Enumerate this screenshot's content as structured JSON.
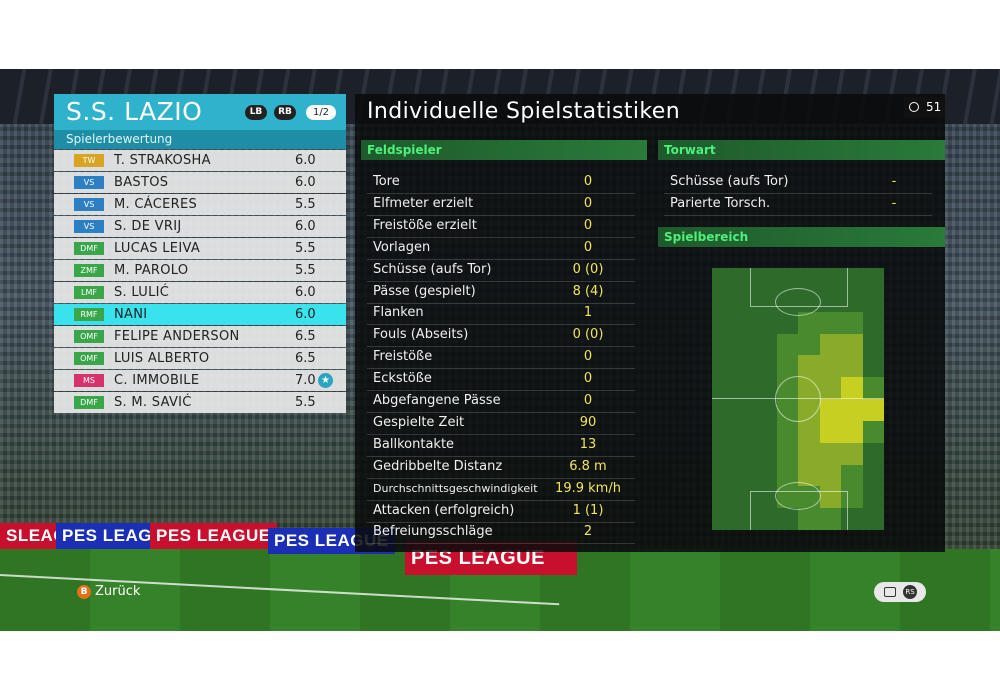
{
  "team": {
    "name": "S.S. LAZIO",
    "lb_label": "LB",
    "rb_label": "RB",
    "page": "1/2",
    "subheader": "Spielerbewertung",
    "accent": "#2fb3cc"
  },
  "players": [
    {
      "pos": "TW",
      "name": "T. STRAKOSHA",
      "rating": "6.0",
      "pos_color": "#d9a422"
    },
    {
      "pos": "VS",
      "name": "BASTOS",
      "rating": "6.0",
      "pos_color": "#2d7fc4"
    },
    {
      "pos": "VS",
      "name": "M. CÁCERES",
      "rating": "5.5",
      "pos_color": "#2d7fc4"
    },
    {
      "pos": "VS",
      "name": "S. DE VRIJ",
      "rating": "6.0",
      "pos_color": "#2d7fc4"
    },
    {
      "pos": "DMF",
      "name": "LUCAS LEIVA",
      "rating": "5.5",
      "pos_color": "#3aa64a"
    },
    {
      "pos": "ZMF",
      "name": "M. PAROLO",
      "rating": "5.5",
      "pos_color": "#3aa64a"
    },
    {
      "pos": "LMF",
      "name": "S. LULIĆ",
      "rating": "6.0",
      "pos_color": "#3aa64a"
    },
    {
      "pos": "RMF",
      "name": "NANI",
      "rating": "6.0",
      "pos_color": "#3aa64a"
    },
    {
      "pos": "OMF",
      "name": "FELIPE ANDERSON",
      "rating": "6.5",
      "pos_color": "#3aa64a"
    },
    {
      "pos": "OMF",
      "name": "LUIS ALBERTO",
      "rating": "6.5",
      "pos_color": "#3aa64a"
    },
    {
      "pos": "MS",
      "name": "C. IMMOBILE",
      "rating": "7.0",
      "pos_color": "#d6336c",
      "star": "★"
    },
    {
      "pos": "DMF",
      "name": "S. M. SAVIĆ",
      "rating": "5.5",
      "pos_color": "#3aa64a"
    }
  ],
  "active_player_index": 7,
  "stats": {
    "title": "Individuelle Spielstatistiken",
    "timer": "51",
    "outfield_head": "Feldspieler",
    "goalkeeper_head": "Torwart",
    "area_head": "Spielbereich",
    "outfield": [
      {
        "label": "Tore",
        "value": "0"
      },
      {
        "label": "Elfmeter erzielt",
        "value": "0"
      },
      {
        "label": "Freistöße erzielt",
        "value": "0"
      },
      {
        "label": "Vorlagen",
        "value": "0"
      },
      {
        "label": "Schüsse (aufs Tor)",
        "value": "0 (0)"
      },
      {
        "label": "Pässe (gespielt)",
        "value": "8 (4)"
      },
      {
        "label": "Flanken",
        "value": "1"
      },
      {
        "label": "Fouls (Abseits)",
        "value": "0 (0)"
      },
      {
        "label": "Freistöße",
        "value": "0"
      },
      {
        "label": "Eckstöße",
        "value": "0"
      },
      {
        "label": "Abgefangene Pässe",
        "value": "0"
      },
      {
        "label": "Gespielte Zeit",
        "value": "90"
      },
      {
        "label": "Ballkontakte",
        "value": "13"
      },
      {
        "label": "Gedribbelte Distanz",
        "value": "6.8 m"
      },
      {
        "label": "Durchschnittsgeschwindigkeit",
        "value": "19.9 km/h"
      },
      {
        "label": "Attacken (erfolgreich)",
        "value": "1 (1)"
      },
      {
        "label": "Befreiungsschläge",
        "value": "2"
      }
    ],
    "goalkeeper": [
      {
        "label": "Schüsse (aufs Tor)",
        "value": "-"
      },
      {
        "label": "Parierte Torsch.",
        "value": "-"
      }
    ]
  },
  "heatmap": {
    "cols": 8,
    "rows": 12,
    "levels": [
      [
        0,
        0,
        0,
        0,
        0,
        0,
        0,
        0
      ],
      [
        0,
        0,
        0,
        0,
        0,
        0,
        0,
        0
      ],
      [
        0,
        0,
        0,
        0,
        1,
        1,
        1,
        0
      ],
      [
        0,
        0,
        0,
        1,
        1,
        2,
        2,
        0
      ],
      [
        0,
        0,
        0,
        1,
        2,
        2,
        2,
        0
      ],
      [
        0,
        0,
        0,
        1,
        2,
        2,
        3,
        1
      ],
      [
        0,
        0,
        0,
        1,
        2,
        3,
        3,
        3
      ],
      [
        0,
        0,
        0,
        1,
        2,
        3,
        3,
        1
      ],
      [
        0,
        0,
        0,
        1,
        2,
        2,
        2,
        0
      ],
      [
        0,
        0,
        0,
        1,
        2,
        2,
        1,
        0
      ],
      [
        0,
        0,
        0,
        1,
        1,
        2,
        1,
        0
      ],
      [
        0,
        0,
        0,
        0,
        1,
        1,
        0,
        0
      ]
    ],
    "colors": [
      "#2e6b2a",
      "#4a8a2e",
      "#8aaa2a",
      "#c6cf22"
    ]
  },
  "ads": [
    {
      "text": "SLEAGUE",
      "color": "red"
    },
    {
      "text": "PES LEAGUE",
      "color": "blue"
    },
    {
      "text": "PES LEAGUE",
      "color": "red"
    },
    {
      "text": "PES LEAGUE",
      "color": "blue"
    },
    {
      "text": "PES LEAGUE",
      "color": "red"
    }
  ],
  "footer": {
    "back_button": "B",
    "back_label": "Zurück",
    "rs_label": "RS"
  }
}
